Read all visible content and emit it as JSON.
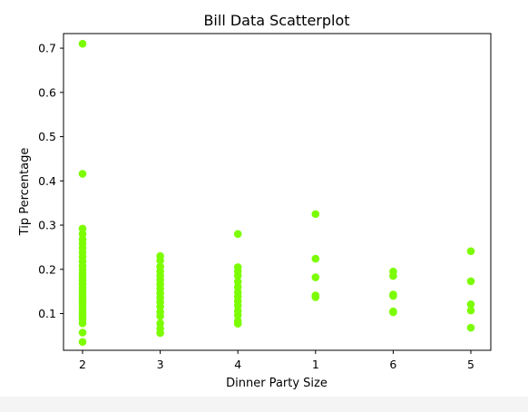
{
  "chart_data": {
    "type": "scatter",
    "title": "Bill Data Scatterplot",
    "xlabel": "Dinner Party Size",
    "ylabel": "Tip Percentage",
    "x_categories": [
      "2",
      "3",
      "4",
      "1",
      "6",
      "5"
    ],
    "yticks": [
      "0.1",
      "0.2",
      "0.3",
      "0.4",
      "0.5",
      "0.6",
      "0.7"
    ],
    "ylim": [
      0.017,
      0.733
    ],
    "grid": false,
    "marker_color": "#7cfc00",
    "series": [
      {
        "points": [
          {
            "x": "2",
            "y": 0.71
          },
          {
            "x": "2",
            "y": 0.416
          },
          {
            "x": "2",
            "y": 0.292
          },
          {
            "x": "2",
            "y": 0.28
          },
          {
            "x": "2",
            "y": 0.268
          },
          {
            "x": "2",
            "y": 0.258
          },
          {
            "x": "2",
            "y": 0.248
          },
          {
            "x": "2",
            "y": 0.238
          },
          {
            "x": "2",
            "y": 0.228
          },
          {
            "x": "2",
            "y": 0.218
          },
          {
            "x": "2",
            "y": 0.208
          },
          {
            "x": "2",
            "y": 0.199
          },
          {
            "x": "2",
            "y": 0.19
          },
          {
            "x": "2",
            "y": 0.182
          },
          {
            "x": "2",
            "y": 0.174
          },
          {
            "x": "2",
            "y": 0.166
          },
          {
            "x": "2",
            "y": 0.158
          },
          {
            "x": "2",
            "y": 0.151
          },
          {
            "x": "2",
            "y": 0.144
          },
          {
            "x": "2",
            "y": 0.137
          },
          {
            "x": "2",
            "y": 0.13
          },
          {
            "x": "2",
            "y": 0.123
          },
          {
            "x": "2",
            "y": 0.116
          },
          {
            "x": "2",
            "y": 0.109
          },
          {
            "x": "2",
            "y": 0.102
          },
          {
            "x": "2",
            "y": 0.095
          },
          {
            "x": "2",
            "y": 0.087
          },
          {
            "x": "2",
            "y": 0.078
          },
          {
            "x": "2",
            "y": 0.057
          },
          {
            "x": "2",
            "y": 0.036
          },
          {
            "x": "3",
            "y": 0.23
          },
          {
            "x": "3",
            "y": 0.22
          },
          {
            "x": "3",
            "y": 0.206
          },
          {
            "x": "3",
            "y": 0.196
          },
          {
            "x": "3",
            "y": 0.186
          },
          {
            "x": "3",
            "y": 0.176
          },
          {
            "x": "3",
            "y": 0.166
          },
          {
            "x": "3",
            "y": 0.156
          },
          {
            "x": "3",
            "y": 0.146
          },
          {
            "x": "3",
            "y": 0.136
          },
          {
            "x": "3",
            "y": 0.126
          },
          {
            "x": "3",
            "y": 0.116
          },
          {
            "x": "3",
            "y": 0.104
          },
          {
            "x": "3",
            "y": 0.094
          },
          {
            "x": "3",
            "y": 0.078
          },
          {
            "x": "3",
            "y": 0.066
          },
          {
            "x": "3",
            "y": 0.056
          },
          {
            "x": "4",
            "y": 0.28
          },
          {
            "x": "4",
            "y": 0.205
          },
          {
            "x": "4",
            "y": 0.196
          },
          {
            "x": "4",
            "y": 0.186
          },
          {
            "x": "4",
            "y": 0.172
          },
          {
            "x": "4",
            "y": 0.16
          },
          {
            "x": "4",
            "y": 0.148
          },
          {
            "x": "4",
            "y": 0.138
          },
          {
            "x": "4",
            "y": 0.128
          },
          {
            "x": "4",
            "y": 0.118
          },
          {
            "x": "4",
            "y": 0.106
          },
          {
            "x": "4",
            "y": 0.096
          },
          {
            "x": "4",
            "y": 0.083
          },
          {
            "x": "4",
            "y": 0.077
          },
          {
            "x": "1",
            "y": 0.325
          },
          {
            "x": "1",
            "y": 0.224
          },
          {
            "x": "1",
            "y": 0.182
          },
          {
            "x": "1",
            "y": 0.141
          },
          {
            "x": "1",
            "y": 0.137
          },
          {
            "x": "6",
            "y": 0.195
          },
          {
            "x": "6",
            "y": 0.185
          },
          {
            "x": "6",
            "y": 0.143
          },
          {
            "x": "6",
            "y": 0.14
          },
          {
            "x": "6",
            "y": 0.105
          },
          {
            "x": "6",
            "y": 0.103
          },
          {
            "x": "5",
            "y": 0.241
          },
          {
            "x": "5",
            "y": 0.173
          },
          {
            "x": "5",
            "y": 0.121
          },
          {
            "x": "5",
            "y": 0.107
          },
          {
            "x": "5",
            "y": 0.068
          }
        ]
      }
    ]
  }
}
